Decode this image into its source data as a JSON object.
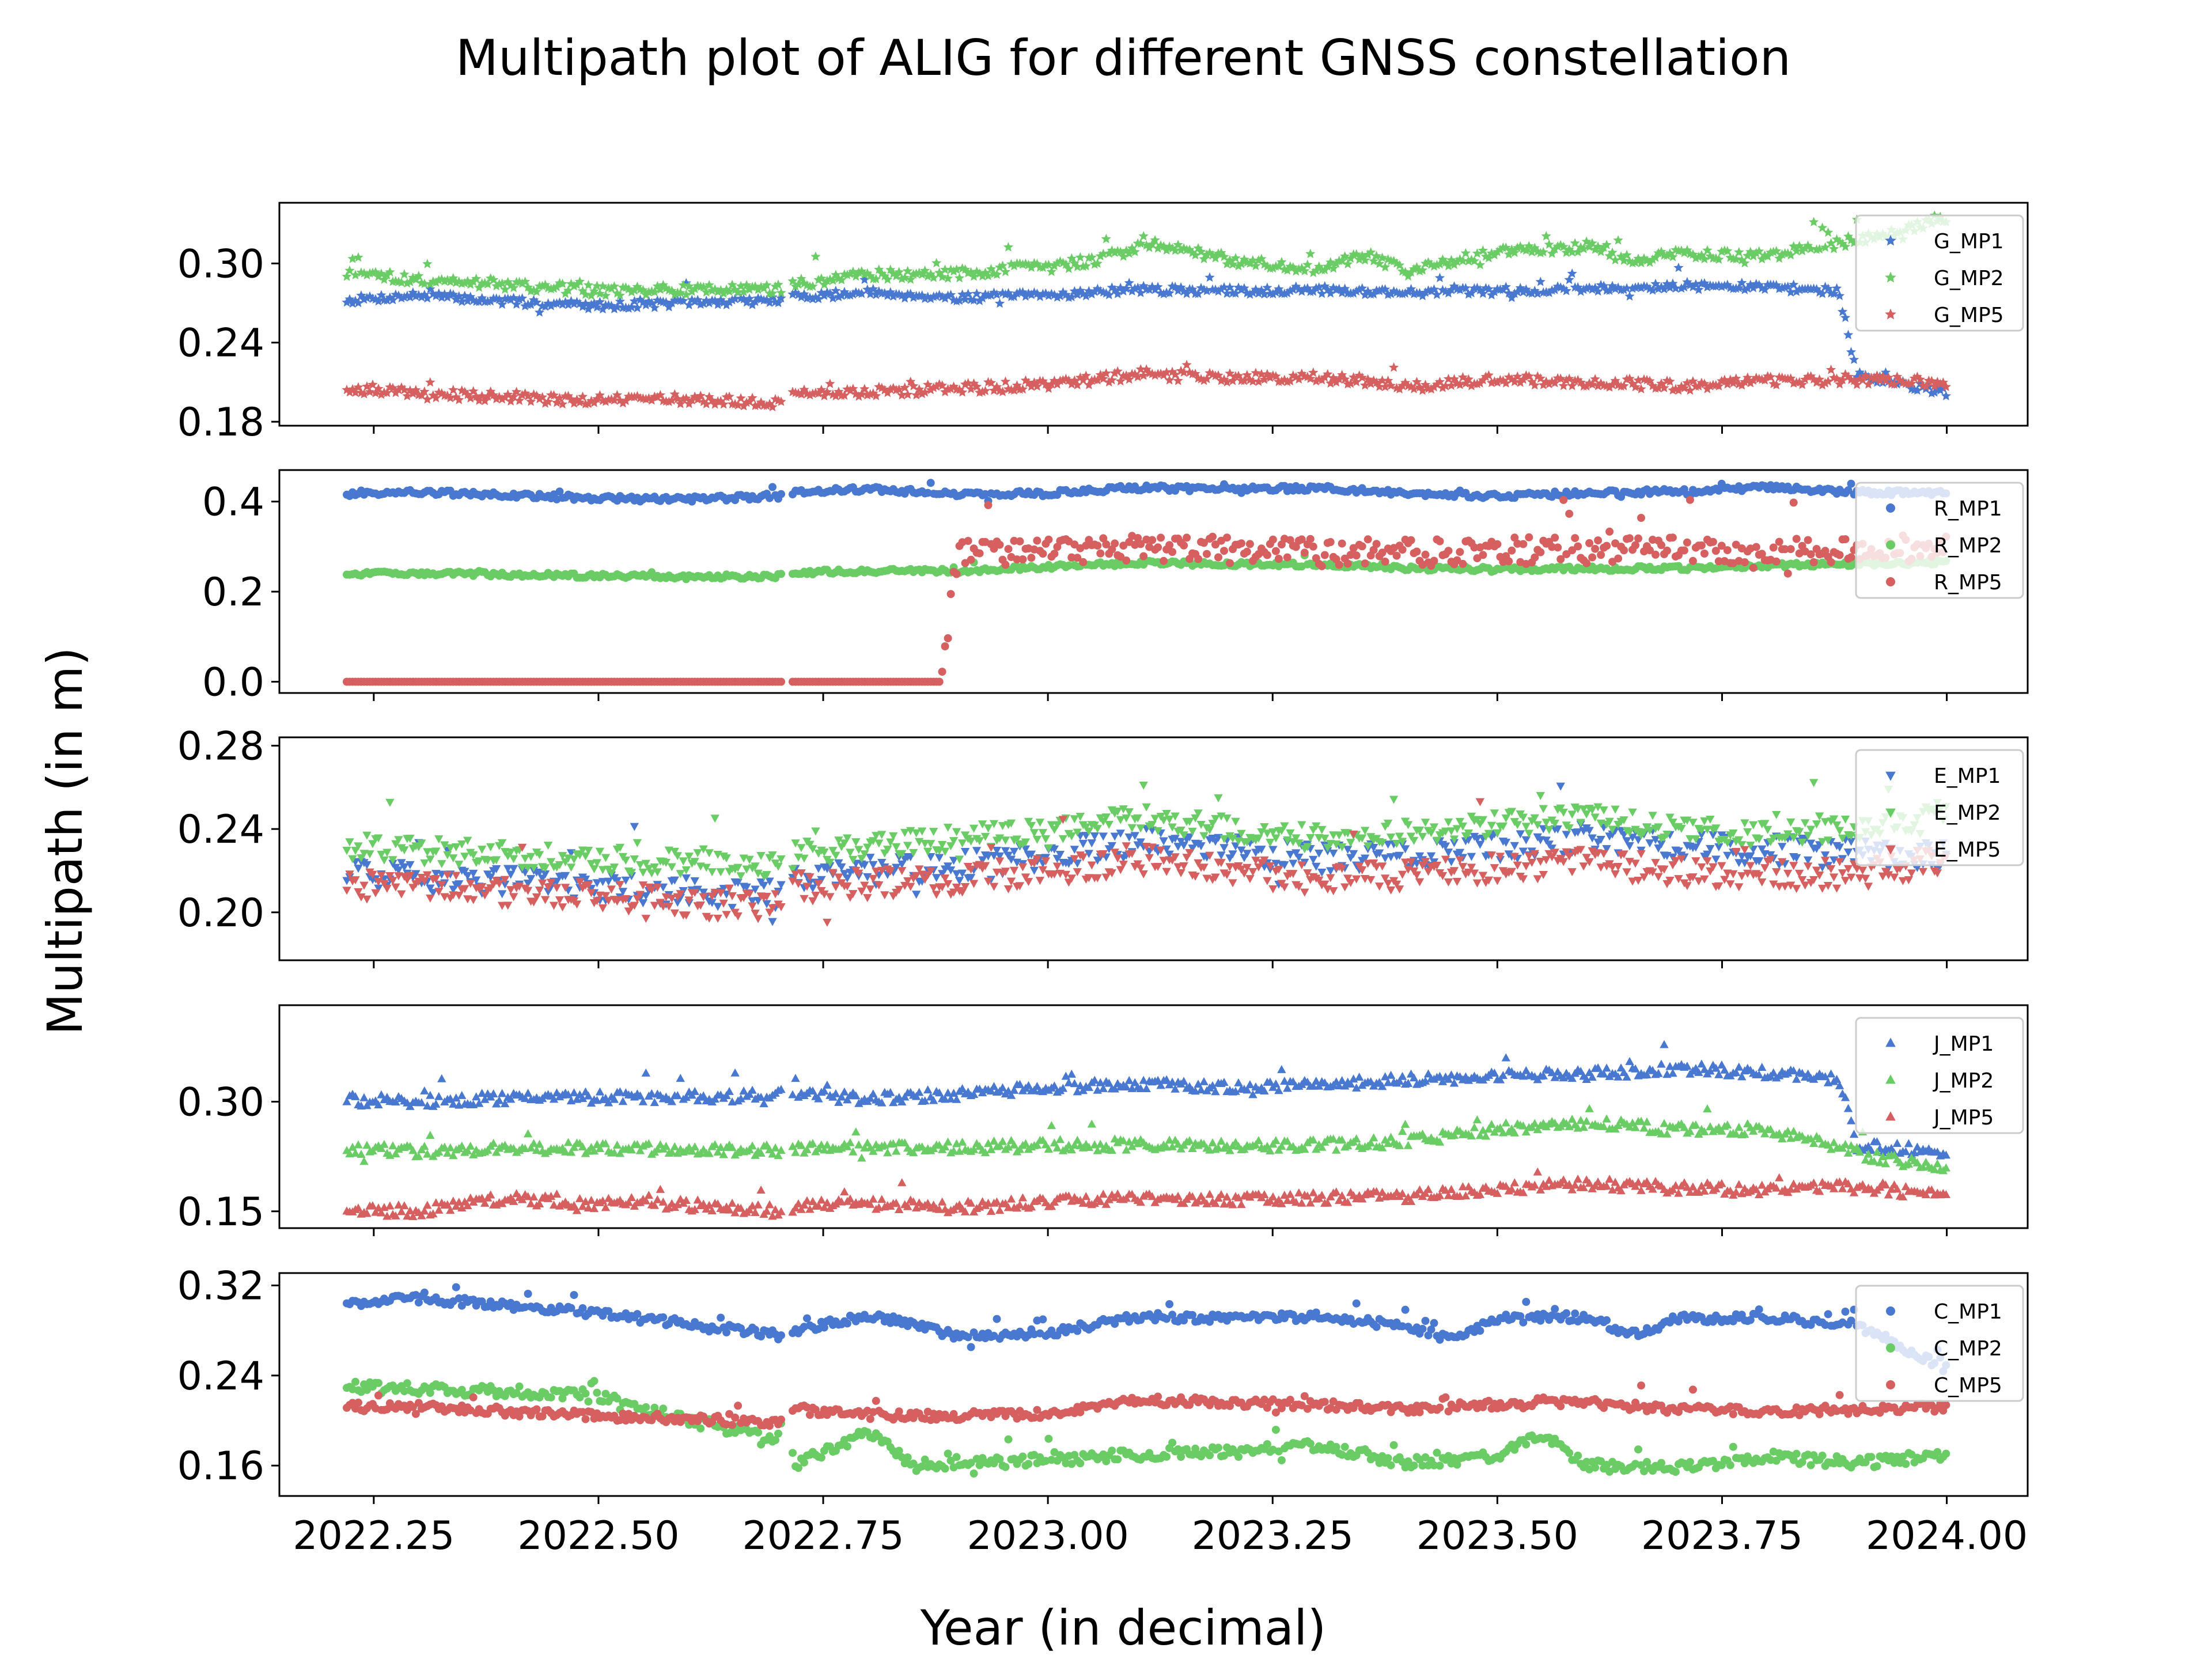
{
  "figure": {
    "title": "Multipath plot of ALIG for different GNSS constellation",
    "xlabel": "Year (in decimal)",
    "ylabel": "Multipath (in m)"
  },
  "colors": {
    "MP1": "#4878D0",
    "MP2": "#6ACC64",
    "MP5": "#D65F5F"
  },
  "chart_data": [
    {
      "type": "scatter",
      "marker": "star",
      "xlim": [
        2022.145,
        2024.09
      ],
      "ylim": [
        0.177,
        0.346
      ],
      "yticks": [
        0.18,
        0.24,
        0.3
      ],
      "ytick_labels": [
        "0.18",
        "0.24",
        "0.30"
      ],
      "xticks": [
        2022.25,
        2022.5,
        2022.75,
        2023.0,
        2023.25,
        2023.5,
        2023.75,
        2024.0
      ],
      "xtick_labels": [],
      "legend": "top-right",
      "grid": false,
      "series": [
        {
          "name": "G_MP1",
          "color_key": "MP1",
          "noise": 0.003,
          "x": [
            2022.22,
            2022.3,
            2022.4,
            2022.5,
            2022.6,
            2022.7,
            2022.72,
            2022.8,
            2022.9,
            2023.0,
            2023.1,
            2023.2,
            2023.3,
            2023.4,
            2023.5,
            2023.6,
            2023.7,
            2023.8,
            2023.88,
            2023.9,
            2024.0
          ],
          "y": [
            0.272,
            0.276,
            0.271,
            0.268,
            0.27,
            0.272,
            0.275,
            0.278,
            0.274,
            0.276,
            0.28,
            0.279,
            0.28,
            0.278,
            0.279,
            0.281,
            0.283,
            0.282,
            0.279,
            0.215,
            0.202
          ]
        },
        {
          "name": "G_MP2",
          "color_key": "MP2",
          "noise": 0.004,
          "x": [
            2022.22,
            2022.3,
            2022.4,
            2022.5,
            2022.6,
            2022.7,
            2022.72,
            2022.8,
            2022.9,
            2023.0,
            2023.05,
            2023.12,
            2023.2,
            2023.3,
            2023.35,
            2023.4,
            2023.5,
            2023.6,
            2023.65,
            2023.7,
            2023.8,
            2023.9,
            2024.0
          ],
          "y": [
            0.292,
            0.288,
            0.284,
            0.279,
            0.28,
            0.28,
            0.285,
            0.291,
            0.292,
            0.298,
            0.302,
            0.315,
            0.303,
            0.294,
            0.307,
            0.294,
            0.309,
            0.313,
            0.301,
            0.307,
            0.306,
            0.318,
            0.333
          ]
        },
        {
          "name": "G_MP5",
          "color_key": "MP5",
          "noise": 0.004,
          "x": [
            2022.22,
            2022.3,
            2022.4,
            2022.5,
            2022.6,
            2022.7,
            2022.72,
            2022.8,
            2022.9,
            2023.0,
            2023.1,
            2023.2,
            2023.3,
            2023.4,
            2023.5,
            2023.6,
            2023.7,
            2023.8,
            2023.9,
            2024.0
          ],
          "y": [
            0.206,
            0.201,
            0.199,
            0.196,
            0.197,
            0.194,
            0.2,
            0.203,
            0.205,
            0.208,
            0.216,
            0.213,
            0.214,
            0.207,
            0.212,
            0.21,
            0.207,
            0.211,
            0.212,
            0.21
          ]
        }
      ]
    },
    {
      "type": "scatter",
      "marker": "circle",
      "xlim": [
        2022.145,
        2024.09
      ],
      "ylim": [
        -0.025,
        0.47
      ],
      "yticks": [
        0.0,
        0.2,
        0.4
      ],
      "ytick_labels": [
        "0.0",
        "0.2",
        "0.4"
      ],
      "xticks": [
        2022.25,
        2022.5,
        2022.75,
        2023.0,
        2023.25,
        2023.5,
        2023.75,
        2024.0
      ],
      "xtick_labels": [],
      "legend": "top-right",
      "grid": false,
      "series": [
        {
          "name": "R_MP1",
          "color_key": "MP1",
          "noise": 0.006,
          "x": [
            2022.22,
            2022.3,
            2022.4,
            2022.5,
            2022.6,
            2022.7,
            2022.72,
            2022.8,
            2022.9,
            2023.0,
            2023.1,
            2023.2,
            2023.3,
            2023.4,
            2023.5,
            2023.6,
            2023.7,
            2023.8,
            2023.9,
            2024.0
          ],
          "y": [
            0.418,
            0.421,
            0.414,
            0.407,
            0.405,
            0.412,
            0.421,
            0.428,
            0.416,
            0.418,
            0.431,
            0.427,
            0.43,
            0.418,
            0.413,
            0.418,
            0.423,
            0.431,
            0.42,
            0.418
          ]
        },
        {
          "name": "R_MP2",
          "color_key": "MP2",
          "noise": 0.005,
          "x": [
            2022.22,
            2022.3,
            2022.4,
            2022.5,
            2022.6,
            2022.7,
            2022.72,
            2022.8,
            2022.9,
            2023.0,
            2023.1,
            2023.2,
            2023.3,
            2023.4,
            2023.5,
            2023.6,
            2023.7,
            2023.8,
            2023.9,
            2024.0
          ],
          "y": [
            0.24,
            0.241,
            0.238,
            0.235,
            0.232,
            0.235,
            0.243,
            0.245,
            0.246,
            0.255,
            0.264,
            0.261,
            0.259,
            0.252,
            0.25,
            0.251,
            0.252,
            0.258,
            0.262,
            0.265
          ]
        },
        {
          "name": "R_MP5",
          "color_key": "MP5",
          "noise": 0.03,
          "x": [
            2022.22,
            2022.3,
            2022.4,
            2022.5,
            2022.6,
            2022.7,
            2022.72,
            2022.8,
            2022.88,
            2022.9,
            2023.0,
            2023.1,
            2023.2,
            2023.3,
            2023.4,
            2023.5,
            2023.6,
            2023.7,
            2023.8,
            2023.9,
            2024.0
          ],
          "y": [
            0.0,
            0.0,
            0.0,
            0.0,
            0.0,
            0.0,
            0.0,
            0.0,
            0.0,
            0.285,
            0.292,
            0.298,
            0.293,
            0.29,
            0.286,
            0.29,
            0.293,
            0.295,
            0.292,
            0.296,
            0.295
          ]
        }
      ]
    },
    {
      "type": "scatter",
      "marker": "triangle-down",
      "xlim": [
        2022.145,
        2024.09
      ],
      "ylim": [
        0.177,
        0.284
      ],
      "yticks": [
        0.2,
        0.24,
        0.28
      ],
      "ytick_labels": [
        "0.20",
        "0.24",
        "0.28"
      ],
      "xticks": [
        2022.25,
        2022.5,
        2022.75,
        2023.0,
        2023.25,
        2023.5,
        2023.75,
        2024.0
      ],
      "xtick_labels": [],
      "legend": "top-right",
      "grid": false,
      "series": [
        {
          "name": "E_MP1",
          "color_key": "MP1",
          "noise": 0.007,
          "x": [
            2022.22,
            2022.3,
            2022.4,
            2022.5,
            2022.6,
            2022.7,
            2022.72,
            2022.8,
            2022.9,
            2023.0,
            2023.1,
            2023.2,
            2023.3,
            2023.4,
            2023.5,
            2023.6,
            2023.7,
            2023.8,
            2023.9,
            2024.0
          ],
          "y": [
            0.218,
            0.216,
            0.215,
            0.213,
            0.21,
            0.208,
            0.218,
            0.22,
            0.222,
            0.228,
            0.234,
            0.23,
            0.226,
            0.228,
            0.232,
            0.236,
            0.233,
            0.23,
            0.228,
            0.228
          ]
        },
        {
          "name": "E_MP2",
          "color_key": "MP2",
          "noise": 0.006,
          "x": [
            2022.22,
            2022.3,
            2022.4,
            2022.5,
            2022.6,
            2022.7,
            2022.72,
            2022.8,
            2022.9,
            2023.0,
            2023.1,
            2023.2,
            2023.3,
            2023.4,
            2023.5,
            2023.6,
            2023.7,
            2023.8,
            2023.9,
            2024.0
          ],
          "y": [
            0.232,
            0.23,
            0.228,
            0.226,
            0.224,
            0.222,
            0.228,
            0.232,
            0.236,
            0.24,
            0.246,
            0.24,
            0.236,
            0.238,
            0.242,
            0.246,
            0.24,
            0.238,
            0.24,
            0.248
          ]
        },
        {
          "name": "E_MP5",
          "color_key": "MP5",
          "noise": 0.007,
          "x": [
            2022.22,
            2022.3,
            2022.4,
            2022.5,
            2022.6,
            2022.7,
            2022.72,
            2022.8,
            2022.9,
            2023.0,
            2023.1,
            2023.2,
            2023.3,
            2023.4,
            2023.5,
            2023.6,
            2023.7,
            2023.8,
            2023.9,
            2024.0
          ],
          "y": [
            0.213,
            0.212,
            0.21,
            0.208,
            0.205,
            0.202,
            0.212,
            0.214,
            0.216,
            0.22,
            0.226,
            0.22,
            0.216,
            0.218,
            0.222,
            0.224,
            0.22,
            0.218,
            0.218,
            0.226
          ]
        }
      ]
    },
    {
      "type": "scatter",
      "marker": "triangle-up",
      "xlim": [
        2022.145,
        2024.09
      ],
      "ylim": [
        0.127,
        0.432
      ],
      "yticks": [
        0.15,
        0.3
      ],
      "ytick_labels": [
        "0.15",
        "0.30"
      ],
      "xticks": [
        2022.25,
        2022.5,
        2022.75,
        2023.0,
        2023.25,
        2023.5,
        2023.75,
        2024.0
      ],
      "xtick_labels": [],
      "legend": "top-right",
      "grid": false,
      "series": [
        {
          "name": "J_MP1",
          "color_key": "MP1",
          "noise": 0.008,
          "x": [
            2022.22,
            2022.3,
            2022.4,
            2022.5,
            2022.6,
            2022.7,
            2022.72,
            2022.8,
            2022.9,
            2023.0,
            2023.1,
            2023.2,
            2023.3,
            2023.4,
            2023.5,
            2023.6,
            2023.7,
            2023.8,
            2023.88,
            2023.9,
            2024.0
          ],
          "y": [
            0.302,
            0.3,
            0.305,
            0.305,
            0.306,
            0.308,
            0.31,
            0.304,
            0.31,
            0.318,
            0.325,
            0.318,
            0.322,
            0.33,
            0.335,
            0.338,
            0.345,
            0.34,
            0.33,
            0.24,
            0.232
          ]
        },
        {
          "name": "J_MP2",
          "color_key": "MP2",
          "noise": 0.008,
          "x": [
            2022.22,
            2022.3,
            2022.4,
            2022.5,
            2022.6,
            2022.7,
            2022.72,
            2022.8,
            2022.9,
            2023.0,
            2023.1,
            2023.2,
            2023.3,
            2023.4,
            2023.5,
            2023.6,
            2023.7,
            2023.8,
            2023.9,
            2024.0
          ],
          "y": [
            0.235,
            0.232,
            0.236,
            0.236,
            0.235,
            0.233,
            0.235,
            0.236,
            0.237,
            0.24,
            0.241,
            0.238,
            0.24,
            0.245,
            0.262,
            0.27,
            0.262,
            0.262,
            0.23,
            0.205
          ]
        },
        {
          "name": "J_MP5",
          "color_key": "MP5",
          "noise": 0.008,
          "x": [
            2022.22,
            2022.3,
            2022.4,
            2022.5,
            2022.6,
            2022.7,
            2022.72,
            2022.8,
            2022.9,
            2023.0,
            2023.1,
            2023.2,
            2023.3,
            2023.4,
            2023.5,
            2023.6,
            2023.7,
            2023.8,
            2023.9,
            2024.0
          ],
          "y": [
            0.152,
            0.15,
            0.168,
            0.16,
            0.158,
            0.15,
            0.158,
            0.16,
            0.155,
            0.162,
            0.168,
            0.165,
            0.168,
            0.17,
            0.18,
            0.188,
            0.182,
            0.178,
            0.185,
            0.17
          ]
        }
      ]
    },
    {
      "type": "scatter",
      "marker": "circle",
      "xlim": [
        2022.145,
        2024.09
      ],
      "ylim": [
        0.133,
        0.331
      ],
      "yticks": [
        0.16,
        0.24,
        0.32
      ],
      "ytick_labels": [
        "0.16",
        "0.24",
        "0.32"
      ],
      "xticks": [
        2022.25,
        2022.5,
        2022.75,
        2023.0,
        2023.25,
        2023.5,
        2023.75,
        2024.0
      ],
      "xtick_labels": [
        "2022.25",
        "2022.50",
        "2022.75",
        "2023.00",
        "2023.25",
        "2023.50",
        "2023.75",
        "2024.00"
      ],
      "legend": "top-right",
      "grid": false,
      "series": [
        {
          "name": "C_MP1",
          "color_key": "MP1",
          "noise": 0.004,
          "x": [
            2022.22,
            2022.3,
            2022.4,
            2022.5,
            2022.6,
            2022.7,
            2022.72,
            2022.8,
            2022.9,
            2023.0,
            2023.1,
            2023.2,
            2023.3,
            2023.4,
            2023.45,
            2023.5,
            2023.6,
            2023.65,
            2023.7,
            2023.8,
            2023.9,
            2024.0
          ],
          "y": [
            0.305,
            0.308,
            0.302,
            0.295,
            0.285,
            0.276,
            0.28,
            0.294,
            0.275,
            0.278,
            0.292,
            0.29,
            0.292,
            0.284,
            0.272,
            0.29,
            0.292,
            0.277,
            0.29,
            0.292,
            0.285,
            0.246
          ]
        },
        {
          "name": "C_MP2",
          "color_key": "MP2",
          "noise": 0.005,
          "x": [
            2022.22,
            2022.3,
            2022.4,
            2022.5,
            2022.6,
            2022.7,
            2022.72,
            2022.8,
            2022.85,
            2022.9,
            2023.0,
            2023.1,
            2023.2,
            2023.3,
            2023.4,
            2023.5,
            2023.55,
            2023.6,
            2023.7,
            2023.8,
            2023.9,
            2024.0
          ],
          "y": [
            0.23,
            0.228,
            0.226,
            0.222,
            0.2,
            0.184,
            0.162,
            0.19,
            0.16,
            0.162,
            0.165,
            0.17,
            0.172,
            0.178,
            0.162,
            0.168,
            0.188,
            0.16,
            0.158,
            0.168,
            0.162,
            0.17
          ]
        },
        {
          "name": "C_MP5",
          "color_key": "MP5",
          "noise": 0.004,
          "x": [
            2022.22,
            2022.3,
            2022.4,
            2022.5,
            2022.6,
            2022.7,
            2022.72,
            2022.8,
            2022.9,
            2023.0,
            2023.1,
            2023.2,
            2023.3,
            2023.4,
            2023.5,
            2023.6,
            2023.7,
            2023.8,
            2023.9,
            2024.0
          ],
          "y": [
            0.212,
            0.212,
            0.208,
            0.204,
            0.202,
            0.198,
            0.21,
            0.205,
            0.204,
            0.206,
            0.218,
            0.216,
            0.214,
            0.21,
            0.214,
            0.216,
            0.21,
            0.208,
            0.21,
            0.212
          ]
        }
      ]
    }
  ]
}
